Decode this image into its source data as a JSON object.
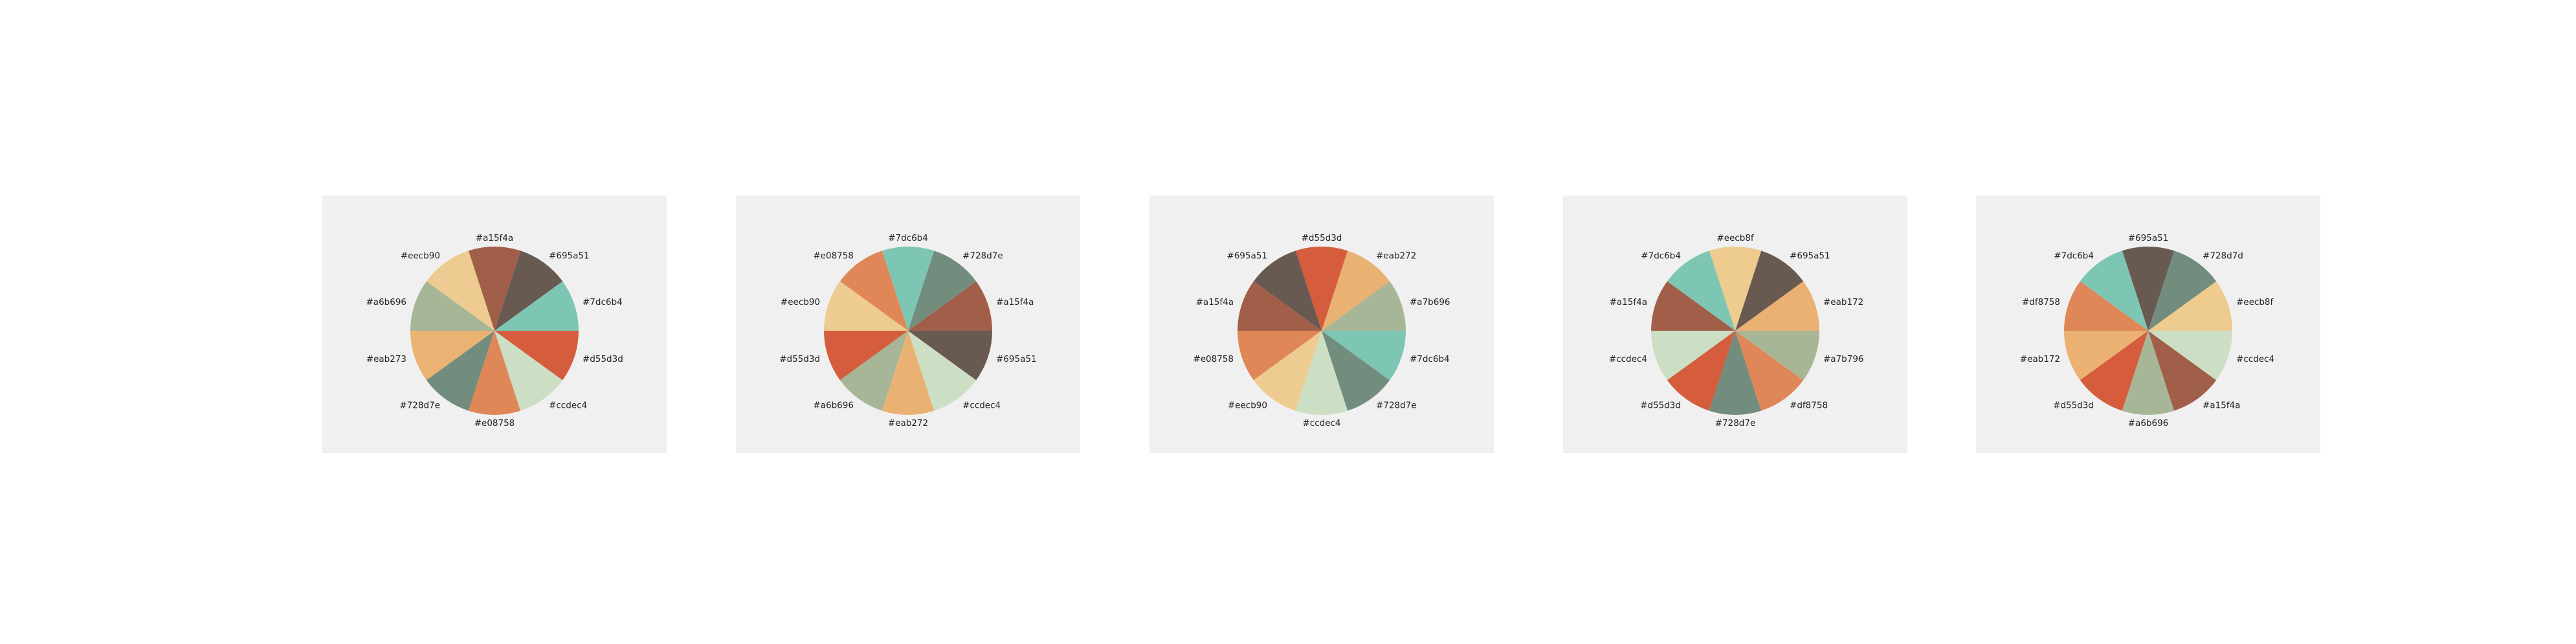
{
  "chart_data": [
    {
      "type": "pie",
      "title": "",
      "background": "#f0f0f0",
      "slices": [
        {
          "label": "#7dc6b4",
          "value": 1,
          "color": "#7dc6b4"
        },
        {
          "label": "#695a51",
          "value": 1,
          "color": "#695a51"
        },
        {
          "label": "#a15f4a",
          "value": 1,
          "color": "#a15f4a"
        },
        {
          "label": "#eecb90",
          "value": 1,
          "color": "#eecb90"
        },
        {
          "label": "#a6b696",
          "value": 1,
          "color": "#a6b696"
        },
        {
          "label": "#eab273",
          "value": 1,
          "color": "#eab273"
        },
        {
          "label": "#728d7e",
          "value": 1,
          "color": "#728d7e"
        },
        {
          "label": "#e08758",
          "value": 1,
          "color": "#e08758"
        },
        {
          "label": "#ccdec4",
          "value": 1,
          "color": "#ccdec4"
        },
        {
          "label": "#d55d3d",
          "value": 1,
          "color": "#d55d3d"
        }
      ]
    },
    {
      "type": "pie",
      "title": "",
      "background": "#f0f0f0",
      "slices": [
        {
          "label": "#a15f4a",
          "value": 1,
          "color": "#a15f4a"
        },
        {
          "label": "#728d7e",
          "value": 1,
          "color": "#728d7e"
        },
        {
          "label": "#7dc6b4",
          "value": 1,
          "color": "#7dc6b4"
        },
        {
          "label": "#e08758",
          "value": 1,
          "color": "#e08758"
        },
        {
          "label": "#eecb90",
          "value": 1,
          "color": "#eecb90"
        },
        {
          "label": "#d55d3d",
          "value": 1,
          "color": "#d55d3d"
        },
        {
          "label": "#a6b696",
          "value": 1,
          "color": "#a6b696"
        },
        {
          "label": "#eab272",
          "value": 1,
          "color": "#eab272"
        },
        {
          "label": "#ccdec4",
          "value": 1,
          "color": "#ccdec4"
        },
        {
          "label": "#695a51",
          "value": 1,
          "color": "#695a51"
        }
      ]
    },
    {
      "type": "pie",
      "title": "",
      "background": "#f0f0f0",
      "slices": [
        {
          "label": "#a7b696",
          "value": 1,
          "color": "#a7b696"
        },
        {
          "label": "#eab272",
          "value": 1,
          "color": "#eab272"
        },
        {
          "label": "#d55d3d",
          "value": 1,
          "color": "#d55d3d"
        },
        {
          "label": "#695a51",
          "value": 1,
          "color": "#695a51"
        },
        {
          "label": "#a15f4a",
          "value": 1,
          "color": "#a15f4a"
        },
        {
          "label": "#e08758",
          "value": 1,
          "color": "#e08758"
        },
        {
          "label": "#eecb90",
          "value": 1,
          "color": "#eecb90"
        },
        {
          "label": "#ccdec4",
          "value": 1,
          "color": "#ccdec4"
        },
        {
          "label": "#728d7e",
          "value": 1,
          "color": "#728d7e"
        },
        {
          "label": "#7dc6b4",
          "value": 1,
          "color": "#7dc6b4"
        }
      ]
    },
    {
      "type": "pie",
      "title": "",
      "background": "#f0f0f0",
      "slices": [
        {
          "label": "#eab172",
          "value": 1,
          "color": "#eab172"
        },
        {
          "label": "#695a51",
          "value": 1,
          "color": "#695a51"
        },
        {
          "label": "#eecb8f",
          "value": 1,
          "color": "#eecb8f"
        },
        {
          "label": "#7dc6b4",
          "value": 1,
          "color": "#7dc6b4"
        },
        {
          "label": "#a15f4a",
          "value": 1,
          "color": "#a15f4a"
        },
        {
          "label": "#ccdec4",
          "value": 1,
          "color": "#ccdec4"
        },
        {
          "label": "#d55d3d",
          "value": 1,
          "color": "#d55d3d"
        },
        {
          "label": "#728d7e",
          "value": 1,
          "color": "#728d7e"
        },
        {
          "label": "#df8758",
          "value": 1,
          "color": "#df8758"
        },
        {
          "label": "#a7b796",
          "value": 1,
          "color": "#a7b796"
        }
      ]
    },
    {
      "type": "pie",
      "title": "",
      "background": "#f0f0f0",
      "slices": [
        {
          "label": "#eecb8f",
          "value": 1,
          "color": "#eecb8f"
        },
        {
          "label": "#728d7d",
          "value": 1,
          "color": "#728d7d"
        },
        {
          "label": "#695a51",
          "value": 1,
          "color": "#695a51"
        },
        {
          "label": "#7dc6b4",
          "value": 1,
          "color": "#7dc6b4"
        },
        {
          "label": "#df8758",
          "value": 1,
          "color": "#df8758"
        },
        {
          "label": "#eab172",
          "value": 1,
          "color": "#eab172"
        },
        {
          "label": "#d55d3d",
          "value": 1,
          "color": "#d55d3d"
        },
        {
          "label": "#a6b696",
          "value": 1,
          "color": "#a6b696"
        },
        {
          "label": "#a15f4a",
          "value": 1,
          "color": "#a15f4a"
        },
        {
          "label": "#ccdec4",
          "value": 1,
          "color": "#ccdec4"
        }
      ]
    }
  ]
}
